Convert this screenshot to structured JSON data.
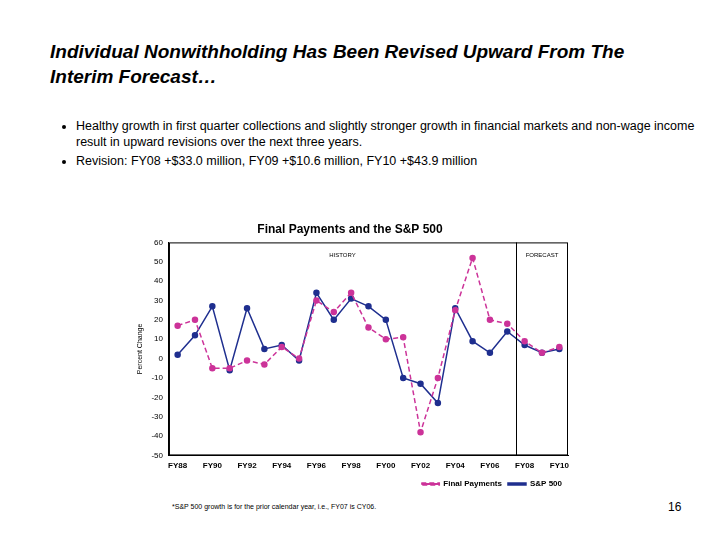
{
  "slide": {
    "title": "Individual Nonwithholding Has Been Revised Upward From The Interim Forecast…",
    "bullets": [
      "Healthy growth in first quarter collections and slightly stronger growth in financial markets and non-wage income result in upward revisions over the next three years.",
      "Revision: FY08 +$33.0 million, FY09 +$10.6 million, FY10 +$43.9 million"
    ],
    "footnote": "*S&P 500 growth is for the prior calendar year, i.e., FY07 is CY06.",
    "page_number": 16
  },
  "chart_data": {
    "type": "line",
    "title": "Final Payments and the S&P 500",
    "y_label": "Percent Change",
    "categories": [
      "FY88",
      null,
      "FY90",
      null,
      "FY92",
      null,
      "FY94",
      null,
      "FY96",
      null,
      "FY98",
      null,
      "FY00",
      null,
      "FY02",
      null,
      "FY04",
      null,
      "FY06",
      null,
      "FY08",
      null,
      "FY10"
    ],
    "series": [
      {
        "name": "Final Payments",
        "color": "#cc3399",
        "line_style": "dashed",
        "marker": "circle",
        "values": [
          17,
          20,
          -5,
          -5,
          -1,
          -3,
          6,
          0,
          30,
          24,
          34,
          16,
          10,
          11,
          -38,
          -10,
          25,
          52,
          20,
          18,
          9,
          3,
          6
        ]
      },
      {
        "name": "S&P 500",
        "color": "#1f2f8f",
        "line_style": "solid",
        "marker": "circle",
        "values": [
          2,
          12,
          27,
          -6,
          26,
          5,
          7,
          -1,
          34,
          20,
          31,
          27,
          20,
          -10,
          -13,
          -23,
          26,
          9,
          3,
          14,
          7,
          3,
          5
        ]
      }
    ],
    "ylim": [
      -50,
      60
    ],
    "yticks": [
      -50,
      -40,
      -30,
      -20,
      -10,
      0,
      10,
      20,
      30,
      40,
      50,
      60
    ],
    "grid": false,
    "legend": "bottom",
    "annotations": [
      {
        "text": "HISTORY"
      },
      {
        "text": "FORECAST"
      }
    ],
    "forecast_start": "FY08"
  }
}
